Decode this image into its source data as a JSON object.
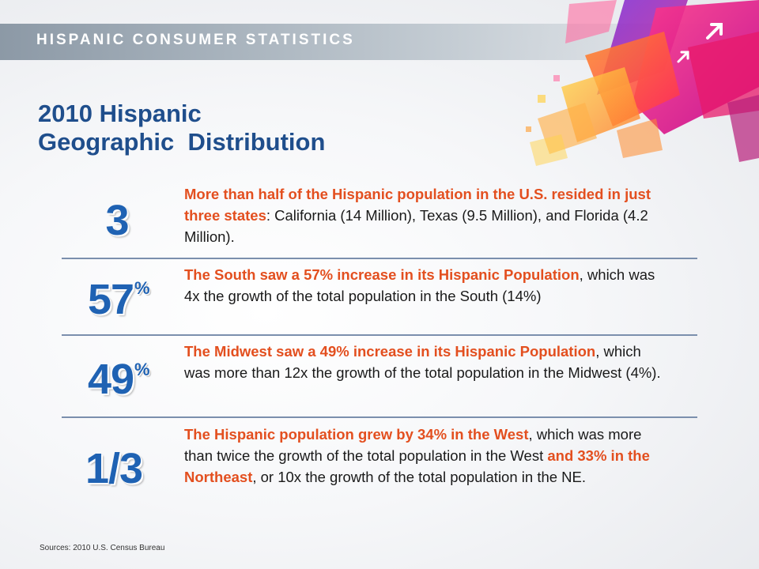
{
  "header": {
    "title": "HISPANIC CONSUMER STATISTICS"
  },
  "title": {
    "line1": "2010 Hispanic",
    "line2": "Geographic  Distribution"
  },
  "stats": [
    {
      "value": "3",
      "suffix": "",
      "highlight": "More than half of the Hispanic population in the U.S. resided in just three states",
      "text": ": California (14 Million), Texas (9.5 Million), and Florida (4.2 Million)."
    },
    {
      "value": "57",
      "suffix": "%",
      "highlight": "The South saw a 57% increase in its Hispanic Population",
      "text": ", which was 4x the growth of the total population in the South (14%)"
    },
    {
      "value": "49",
      "suffix": "%",
      "highlight": "The Midwest saw a 49% increase in its Hispanic Population",
      "text": ", which was more than 12x the growth of the total population in the Midwest (4%)."
    },
    {
      "value": "1/3",
      "suffix": "",
      "highlight": "The Hispanic population grew by 34% in the West",
      "text": ", which was more than twice the growth of the total population in the West ",
      "highlight2": "and 33% in the Northeast",
      "text2": ", or 10x the growth of the total population in the NE."
    }
  ],
  "source": "Sources: 2010 U.S. Census Bureau",
  "colors": {
    "accent": "#e34f1f",
    "number": "#1f62b3",
    "title": "#1f4e8c"
  }
}
